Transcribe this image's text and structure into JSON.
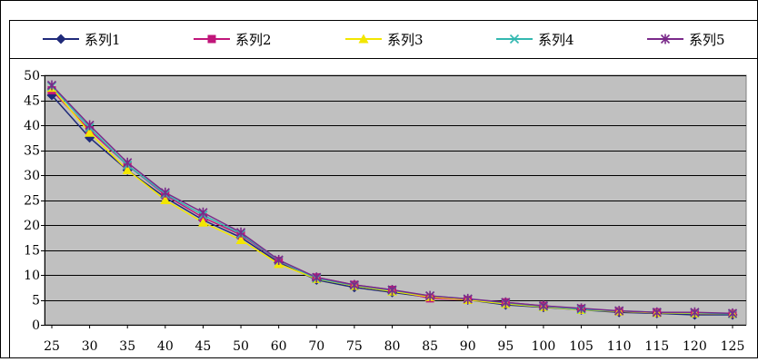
{
  "chart_data": {
    "type": "line",
    "title": "",
    "xlabel": "",
    "ylabel": "",
    "categories": [
      "25",
      "30",
      "35",
      "40",
      "45",
      "50",
      "60",
      "70",
      "75",
      "80",
      "85",
      "90",
      "95",
      "100",
      "105",
      "110",
      "115",
      "120",
      "125"
    ],
    "ylim": [
      0,
      50
    ],
    "yticks": [
      "0",
      "5",
      "10",
      "15",
      "20",
      "25",
      "30",
      "35",
      "40",
      "45",
      "50"
    ],
    "grid": true,
    "legend": "top",
    "plot_background": "#c0c0c0",
    "series": [
      {
        "name": "系列1",
        "color": "#1f2a7a",
        "marker": "diamond",
        "values": [
          46.0,
          37.5,
          31.0,
          25.5,
          21.0,
          17.5,
          12.5,
          9.0,
          7.5,
          6.5,
          5.5,
          5.0,
          4.0,
          3.5,
          3.0,
          2.5,
          2.3,
          2.0,
          2.0
        ]
      },
      {
        "name": "系列2",
        "color": "#c0167a",
        "marker": "square",
        "values": [
          47.0,
          39.0,
          32.0,
          26.0,
          21.5,
          18.0,
          12.8,
          9.5,
          8.0,
          7.0,
          5.3,
          5.0,
          4.5,
          3.8,
          3.2,
          2.7,
          2.5,
          2.3,
          2.2
        ]
      },
      {
        "name": "系列3",
        "color": "#f2e600",
        "marker": "triangle",
        "values": [
          47.5,
          38.5,
          31.0,
          25.0,
          20.5,
          17.0,
          12.2,
          9.2,
          7.8,
          6.7,
          5.6,
          5.0,
          4.2,
          3.6,
          3.0,
          2.7,
          2.4,
          2.3,
          2.2
        ]
      },
      {
        "name": "系列4",
        "color": "#33b8b0",
        "marker": "x",
        "values": [
          47.8,
          39.5,
          32.0,
          26.2,
          22.0,
          18.2,
          12.9,
          9.3,
          7.9,
          6.9,
          5.8,
          5.2,
          4.4,
          3.7,
          3.1,
          2.8,
          2.5,
          2.4,
          2.2
        ]
      },
      {
        "name": "系列5",
        "color": "#7a2a8a",
        "marker": "star",
        "values": [
          48.0,
          40.0,
          32.5,
          26.5,
          22.5,
          18.5,
          13.0,
          9.5,
          8.0,
          7.0,
          5.8,
          5.2,
          4.5,
          3.8,
          3.3,
          2.8,
          2.5,
          2.5,
          2.3
        ]
      }
    ]
  }
}
